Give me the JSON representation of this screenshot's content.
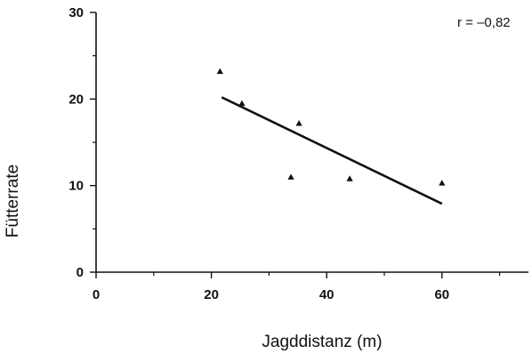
{
  "chart_data": {
    "type": "scatter",
    "title": "",
    "xlabel": "Jagddistanz (m)",
    "ylabel": "Fütterrate",
    "xlim": [
      0,
      75
    ],
    "ylim": [
      0,
      30
    ],
    "x_ticks": [
      0,
      20,
      40,
      60
    ],
    "x_tick_labels": [
      "0",
      "20",
      "40",
      "60"
    ],
    "x_minor_ticks": [
      10,
      30,
      50,
      70
    ],
    "y_ticks": [
      0,
      10,
      20,
      30
    ],
    "y_tick_labels": [
      "0",
      "10",
      "20",
      "30"
    ],
    "y_minor_ticks": [
      5,
      15,
      25
    ],
    "grid": false,
    "legend": "none",
    "marker": "triangle",
    "series": [
      {
        "x": [
          21.5,
          25.3,
          35.2,
          33.8,
          44.0,
          60.0
        ],
        "y": [
          23.2,
          19.5,
          17.2,
          11.0,
          10.8,
          10.3
        ]
      }
    ],
    "regression_line": {
      "x": [
        21.8,
        60.0
      ],
      "y": [
        20.2,
        7.9
      ]
    },
    "annotation": "r = –0,82",
    "colors": {
      "axis": "#111111",
      "marker": "#111111",
      "line": "#111111"
    }
  }
}
